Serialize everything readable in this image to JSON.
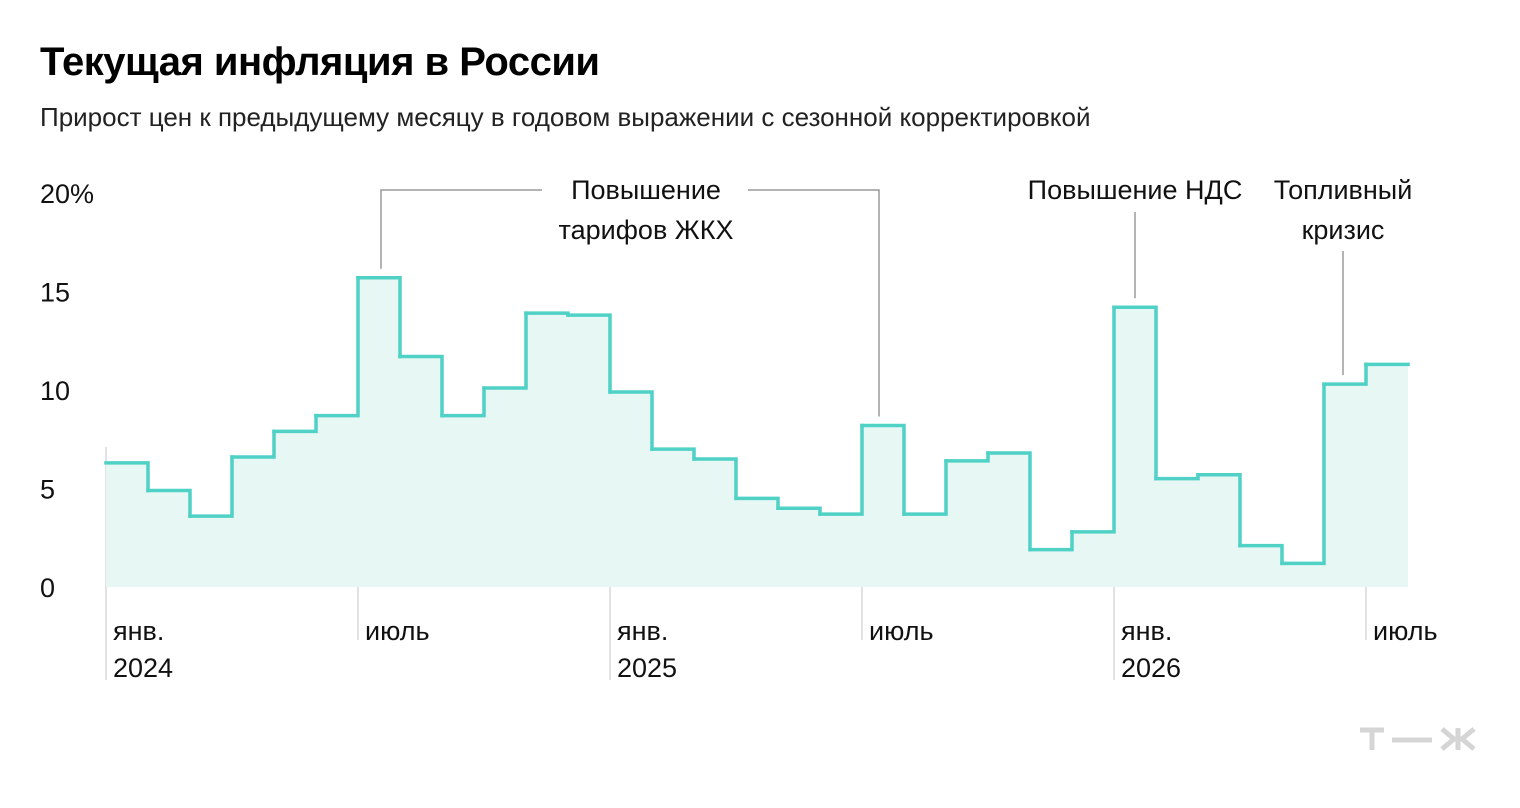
{
  "title": "Текущая инфляция в России",
  "subtitle": "Прирост цен к предыдущему месяцу в годовом выражении с сезонной корректировкой",
  "logo_text": "Т—Ж",
  "colors": {
    "line": "#4fd1c5",
    "fill": "#e6f7f4",
    "leader": "#9a9a9a",
    "tick": "#d8d8d8"
  },
  "chart_data": {
    "type": "line",
    "step": true,
    "ylim": [
      0,
      20
    ],
    "yticks": [
      {
        "value": 0,
        "label": "0"
      },
      {
        "value": 5,
        "label": "5"
      },
      {
        "value": 10,
        "label": "10"
      },
      {
        "value": 15,
        "label": "15"
      },
      {
        "value": 20,
        "label": "20%"
      }
    ],
    "x": [
      "2024-01",
      "2024-02",
      "2024-03",
      "2024-04",
      "2024-05",
      "2024-06",
      "2024-07",
      "2024-08",
      "2024-09",
      "2024-10",
      "2024-11",
      "2024-12",
      "2025-01",
      "2025-02",
      "2025-03",
      "2025-04",
      "2025-05",
      "2025-06",
      "2025-07",
      "2025-08",
      "2025-09",
      "2025-10",
      "2025-11",
      "2025-12",
      "2026-01",
      "2026-02",
      "2026-03",
      "2026-04",
      "2026-05",
      "2026-06",
      "2026-07"
    ],
    "values": [
      6.3,
      4.9,
      3.6,
      6.6,
      7.9,
      8.7,
      15.7,
      11.7,
      8.7,
      10.1,
      13.9,
      13.8,
      9.9,
      7.0,
      6.5,
      4.5,
      4.0,
      3.7,
      8.2,
      3.7,
      6.4,
      6.8,
      1.9,
      2.8,
      14.2,
      5.5,
      5.7,
      2.1,
      1.2,
      10.3,
      11.3
    ],
    "xticks": [
      {
        "x": "2024-01",
        "label": "янв.",
        "year": "2024"
      },
      {
        "x": "2024-07",
        "label": "июль",
        "year": ""
      },
      {
        "x": "2025-01",
        "label": "янв.",
        "year": "2025"
      },
      {
        "x": "2025-07",
        "label": "июль",
        "year": ""
      },
      {
        "x": "2026-01",
        "label": "янв.",
        "year": "2026"
      },
      {
        "x": "2026-07",
        "label": "июль",
        "year": ""
      }
    ],
    "annotations": [
      {
        "lines": [
          "Повышение",
          "тарифов ЖКХ"
        ],
        "targets": [
          "2024-07",
          "2025-07"
        ]
      },
      {
        "lines": [
          "Повышение НДС"
        ],
        "targets": [
          "2026-01"
        ]
      },
      {
        "lines": [
          "Топливный",
          "кризис"
        ],
        "targets": [
          "2026-06"
        ]
      }
    ]
  }
}
